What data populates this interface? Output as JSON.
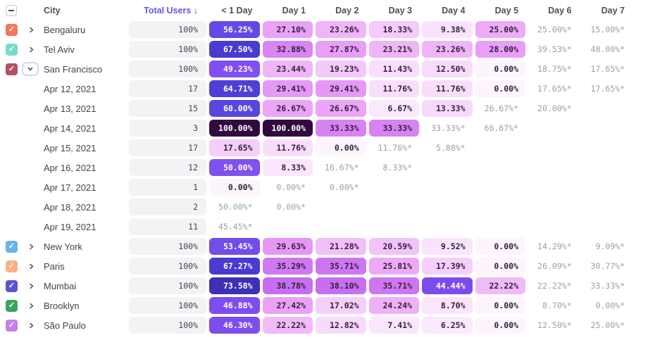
{
  "table": {
    "header": {
      "city": "City",
      "total_users": "Total Users",
      "sort_arrow": "↓",
      "days": [
        "< 1 Day",
        "Day 1",
        "Day 2",
        "Day 3",
        "Day 4",
        "Day 5",
        "Day 6",
        "Day 7"
      ]
    },
    "icons": {
      "select_all": "minus-icon",
      "row_checked": "check-icon",
      "collapsed": "chevron-right-icon",
      "expanded": "chevron-down-icon",
      "sort": "arrow-down-icon"
    },
    "colors": {
      "sort_header_text": "#6056e9",
      "starred_text": "#9aa0a9",
      "cell_dark_text": "#31243a",
      "total_pill_bg": "#f3f3f5",
      "heatmap": [
        [
          0,
          "#fdf4fe"
        ],
        [
          10,
          "#fae3fd"
        ],
        [
          20,
          "#f3c6fa"
        ],
        [
          25,
          "#eeacf8"
        ],
        [
          30,
          "#e595f6"
        ],
        [
          36,
          "#cd74f1"
        ],
        [
          42,
          "#be64f0"
        ],
        [
          43,
          "#7b4aee"
        ],
        [
          50,
          "#8150f0"
        ],
        [
          57,
          "#6049e3"
        ],
        [
          62,
          "#5444dc"
        ],
        [
          68,
          "#483acf"
        ],
        [
          75,
          "#3a2cb0"
        ],
        [
          100,
          "#300a3e"
        ]
      ],
      "white_text_threshold": 43
    },
    "footnote_marker": "*",
    "rows": [
      {
        "type": "city",
        "label": "Bengaluru",
        "checkbox_color": "#f4765c",
        "expanded": false,
        "total": "100%",
        "cells": [
          "56.25%",
          "27.10%",
          "23.26%",
          "18.33%",
          "9.38%",
          "25.00%",
          "25.00%*",
          "15.00%*"
        ]
      },
      {
        "type": "city",
        "label": "Tel Aviv",
        "checkbox_color": "#78dcc9",
        "expanded": false,
        "total": "100%",
        "cells": [
          "67.50%",
          "32.88%",
          "27.87%",
          "23.21%",
          "23.26%",
          "28.00%",
          "39.53%*",
          "48.00%*"
        ]
      },
      {
        "type": "city",
        "label": "San Francisco",
        "checkbox_color": "#b05266",
        "expanded": true,
        "total": "100%",
        "cells": [
          "49.23%",
          "23.44%",
          "19.23%",
          "11.43%",
          "12.50%",
          "0.00%",
          "18.75%*",
          "17.65%*"
        ]
      },
      {
        "type": "date",
        "label": "Apr 12, 2021",
        "total": "17",
        "cells": [
          "64.71%",
          "29.41%",
          "29.41%",
          "11.76%",
          "11.76%",
          "0.00%",
          "17.65%*",
          "17.65%*"
        ]
      },
      {
        "type": "date",
        "label": "Apr 13, 2021",
        "total": "15",
        "cells": [
          "60.00%",
          "26.67%",
          "26.67%",
          "6.67%",
          "13.33%",
          "26.67%*",
          "20.00%*",
          ""
        ]
      },
      {
        "type": "date",
        "label": "Apr 14, 2021",
        "total": "3",
        "cells": [
          "100.00%",
          "100.00%",
          "33.33%",
          "33.33%",
          "33.33%*",
          "66.67%*",
          "",
          ""
        ]
      },
      {
        "type": "date",
        "label": "Apr 15, 2021",
        "total": "17",
        "cells": [
          "17.65%",
          "11.76%",
          "0.00%",
          "11.76%*",
          "5.88%*",
          "",
          "",
          ""
        ]
      },
      {
        "type": "date",
        "label": "Apr 16, 2021",
        "total": "12",
        "cells": [
          "50.00%",
          "8.33%",
          "16.67%*",
          "8.33%*",
          "",
          "",
          "",
          ""
        ]
      },
      {
        "type": "date",
        "label": "Apr 17, 2021",
        "total": "1",
        "cells": [
          "0.00%",
          "0.00%*",
          "0.00%*",
          "",
          "",
          "",
          "",
          ""
        ]
      },
      {
        "type": "date",
        "label": "Apr 18, 2021",
        "total": "2",
        "cells": [
          "50.00%*",
          "0.00%*",
          "",
          "",
          "",
          "",
          "",
          ""
        ]
      },
      {
        "type": "date",
        "label": "Apr 19, 2021",
        "total": "11",
        "cells": [
          "45.45%*",
          "",
          "",
          "",
          "",
          "",
          "",
          ""
        ]
      },
      {
        "type": "city",
        "label": "New York",
        "checkbox_color": "#68b4ec",
        "expanded": false,
        "total": "100%",
        "cells": [
          "53.45%",
          "29.63%",
          "21.28%",
          "20.59%",
          "9.52%",
          "0.00%",
          "14.29%*",
          "9.09%*"
        ]
      },
      {
        "type": "city",
        "label": "Paris",
        "checkbox_color": "#f8b284",
        "expanded": false,
        "total": "100%",
        "cells": [
          "67.27%",
          "35.29%",
          "35.71%",
          "25.81%",
          "17.39%",
          "0.00%",
          "26.09%*",
          "30.77%*"
        ]
      },
      {
        "type": "city",
        "label": "Mumbai",
        "checkbox_color": "#5a55d8",
        "expanded": false,
        "total": "100%",
        "cells": [
          "73.58%",
          "38.78%",
          "38.10%",
          "35.71%",
          "44.44%",
          "22.22%",
          "22.22%*",
          "33.33%*"
        ]
      },
      {
        "type": "city",
        "label": "Brooklyn",
        "checkbox_color": "#37a65a",
        "expanded": false,
        "total": "100%",
        "cells": [
          "46.88%",
          "27.42%",
          "17.02%",
          "24.24%",
          "8.70%",
          "0.00%",
          "8.70%*",
          "0.00%*"
        ]
      },
      {
        "type": "city",
        "label": "São Paulo",
        "checkbox_color": "#c77fe9",
        "expanded": false,
        "total": "100%",
        "cells": [
          "46.30%",
          "22.22%",
          "12.82%",
          "7.41%",
          "6.25%",
          "0.00%",
          "12.50%*",
          "25.00%*"
        ]
      }
    ]
  }
}
